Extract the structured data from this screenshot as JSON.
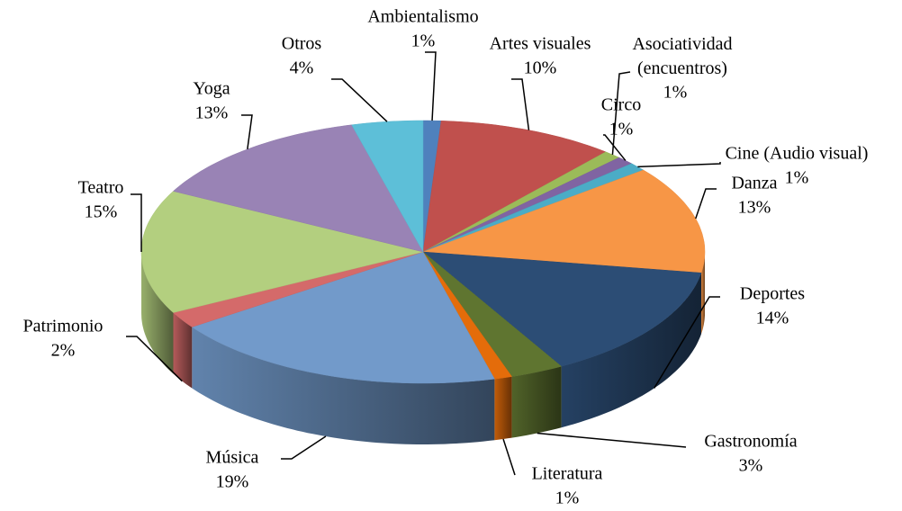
{
  "chart_data": {
    "type": "pie3d",
    "categories": [
      "Ambientalismo",
      "Artes visuales",
      "Asociatividad (encuentros)",
      "Circo",
      "Cine (Audio visual)",
      "Danza",
      "Deportes",
      "Gastronomía",
      "Literatura",
      "Música",
      "Patrimonio",
      "Teatro",
      "Yoga",
      "Otros"
    ],
    "values": [
      1,
      10,
      1,
      1,
      1,
      13,
      14,
      3,
      1,
      19,
      2,
      15,
      13,
      4
    ],
    "value_labels": [
      "1%",
      "10%",
      "1%",
      "1%",
      "1%",
      "13%",
      "14%",
      "3%",
      "1%",
      "19%",
      "2%",
      "15%",
      "13%",
      "4%"
    ],
    "colors": [
      "#4f81bd",
      "#c0504d",
      "#9bbb59",
      "#8064a2",
      "#4bacc6",
      "#f79646",
      "#2c4d75",
      "#5f7530",
      "#e46c0a",
      "#729aca",
      "#d46a6a",
      "#b3cf7f",
      "#9983b5",
      "#5dbfd8"
    ]
  }
}
